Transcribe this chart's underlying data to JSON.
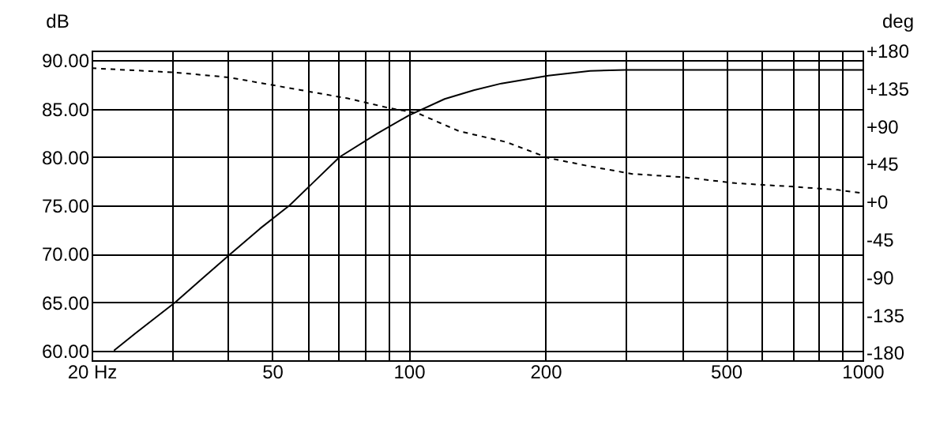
{
  "chart_data": {
    "type": "line",
    "xlabel": null,
    "ylabel": "dB",
    "y2label": "deg",
    "log": "x",
    "grid": true,
    "marker": "none",
    "xlim": [
      20,
      1000
    ],
    "xticks": [
      {
        "value": 20,
        "label": "20 Hz"
      },
      {
        "value": 30,
        "label": null
      },
      {
        "value": 40,
        "label": null
      },
      50,
      {
        "value": 60,
        "label": null
      },
      {
        "value": 70,
        "label": null
      },
      {
        "value": 80,
        "label": null
      },
      {
        "value": 90,
        "label": null
      },
      100,
      200,
      {
        "value": 300,
        "label": null
      },
      {
        "value": 400,
        "label": null
      },
      500,
      {
        "value": 600,
        "label": null
      },
      {
        "value": 700,
        "label": null
      },
      {
        "value": 800,
        "label": null
      },
      {
        "value": 900,
        "label": null
      },
      1000
    ],
    "ylim": [
      59,
      91
    ],
    "yticks": [
      {
        "value": 60,
        "label": "60.00"
      },
      {
        "value": 65,
        "label": "65.00"
      },
      {
        "value": 70,
        "label": "70.00"
      },
      {
        "value": 75,
        "label": "75.00"
      },
      {
        "value": 80,
        "label": "80.00"
      },
      {
        "value": 85,
        "label": "85.00"
      },
      {
        "value": 90,
        "label": "90.00"
      }
    ],
    "y2lim": [
      -189,
      180
    ],
    "y2ticks": [
      {
        "value": -180,
        "label": "-180"
      },
      {
        "value": -135,
        "label": "-135"
      },
      {
        "value": -90,
        "label": "-90"
      },
      {
        "value": -45,
        "label": "-45"
      },
      {
        "value": 0,
        "label": "+0"
      },
      {
        "value": 45,
        "label": "+45"
      },
      {
        "value": 90,
        "label": "+90"
      },
      {
        "value": 135,
        "label": "+135"
      },
      {
        "value": 180,
        "label": "+180"
      }
    ],
    "series": [
      {
        "color": "#000000",
        "line_style": "solid",
        "x": [
          22.4,
          25,
          30.6,
          35,
          40.5,
          47,
          54.6,
          62,
          70.4,
          85,
          100,
          120,
          139,
          160,
          203,
          251,
          300,
          400,
          600,
          1000
        ],
        "values": [
          60,
          61.8,
          65,
          67.4,
          70,
          72.6,
          75,
          77.5,
          80,
          82.4,
          84.3,
          86,
          86.9,
          87.6,
          88.4,
          88.9,
          89,
          89,
          89,
          89
        ]
      },
      {
        "color": "#000000",
        "line_style": "dashed",
        "axis": "y2",
        "x": [
          20,
          30.4,
          40.2,
          57.7,
          73.4,
          89.7,
          105,
          129,
          164,
          203,
          251,
          311,
          405,
          524,
          694,
          882,
          1000
        ],
        "values": [
          159,
          154,
          148,
          133,
          123,
          112,
          105,
          84,
          71,
          52,
          42,
          33,
          29,
          22,
          18,
          14,
          10
        ]
      }
    ]
  }
}
